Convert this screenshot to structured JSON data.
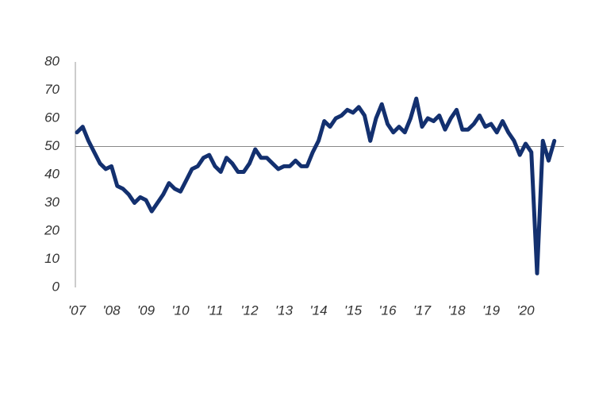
{
  "chart_data": {
    "type": "line",
    "categories": [
      "'07",
      null,
      null,
      null,
      null,
      null,
      "'08",
      null,
      null,
      null,
      null,
      null,
      "'09",
      null,
      null,
      null,
      null,
      null,
      "'10",
      null,
      null,
      null,
      null,
      null,
      "'11",
      null,
      null,
      null,
      null,
      null,
      "'12",
      null,
      null,
      null,
      null,
      null,
      "'13",
      null,
      null,
      null,
      null,
      null,
      "'14",
      null,
      null,
      null,
      null,
      null,
      "'15",
      null,
      null,
      null,
      null,
      null,
      "'16",
      null,
      null,
      null,
      null,
      null,
      "'17",
      null,
      null,
      null,
      null,
      null,
      "'18",
      null,
      null,
      null,
      null,
      null,
      "'19",
      null,
      null,
      null,
      null,
      null,
      "'20",
      null,
      null,
      null,
      null,
      null
    ],
    "values": [
      55,
      57,
      52,
      48,
      44,
      42,
      43,
      36,
      35,
      33,
      30,
      32,
      31,
      27,
      30,
      33,
      37,
      35,
      34,
      38,
      42,
      43,
      46,
      47,
      43,
      41,
      46,
      44,
      41,
      41,
      44,
      49,
      46,
      46,
      44,
      42,
      43,
      43,
      45,
      43,
      43,
      48,
      52,
      59,
      57,
      60,
      61,
      63,
      62,
      64,
      61,
      52,
      60,
      65,
      58,
      55,
      57,
      55,
      60,
      67,
      57,
      60,
      59,
      61,
      56,
      60,
      63,
      56,
      56,
      58,
      61,
      57,
      58,
      55,
      59,
      55,
      52,
      47,
      51,
      48,
      5,
      52,
      45,
      52
    ],
    "color": "#13306f",
    "ylim": [
      0,
      80
    ],
    "yticks": [
      0,
      10,
      20,
      30,
      40,
      50,
      60,
      70,
      80
    ],
    "refline": 50
  }
}
